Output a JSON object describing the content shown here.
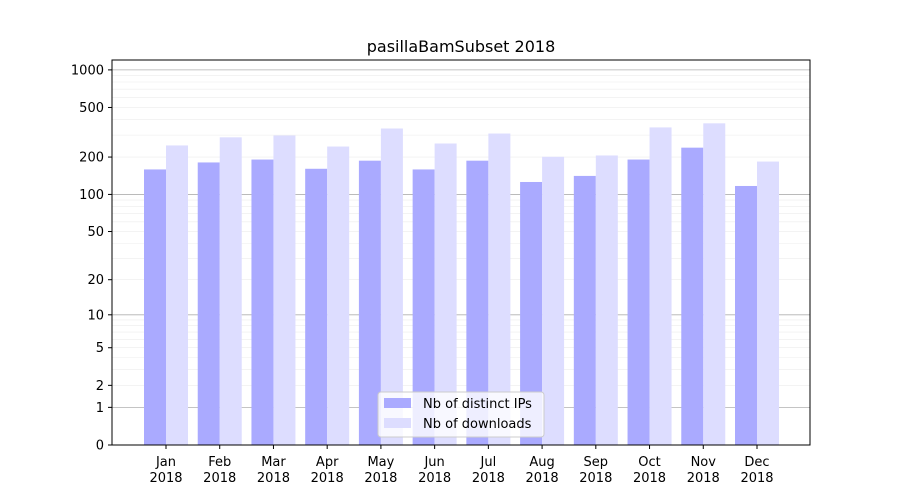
{
  "chart_data": {
    "type": "bar",
    "title": "pasillaBamSubset 2018",
    "xlabel": "",
    "ylabel": "",
    "yscale": "log10(1+y)",
    "ylim": [
      0,
      1200
    ],
    "yticks": [
      0,
      1,
      2,
      5,
      10,
      20,
      50,
      100,
      200,
      500,
      1000
    ],
    "grid": true,
    "legend_position": "bottom-center",
    "categories": [
      "Jan\n2018",
      "Feb\n2018",
      "Mar\n2018",
      "Apr\n2018",
      "May\n2018",
      "Jun\n2018",
      "Jul\n2018",
      "Aug\n2018",
      "Sep\n2018",
      "Oct\n2018",
      "Nov\n2018",
      "Dec\n2018"
    ],
    "series": [
      {
        "name": "Nb of distinct IPs",
        "color": "#aaaaff",
        "values": [
          159,
          181,
          191,
          161,
          187,
          159,
          187,
          126,
          141,
          191,
          238,
          117
        ]
      },
      {
        "name": "Nb of downloads",
        "color": "#ddddff",
        "values": [
          248,
          288,
          298,
          243,
          339,
          257,
          309,
          201,
          206,
          346,
          373,
          184
        ]
      }
    ]
  }
}
